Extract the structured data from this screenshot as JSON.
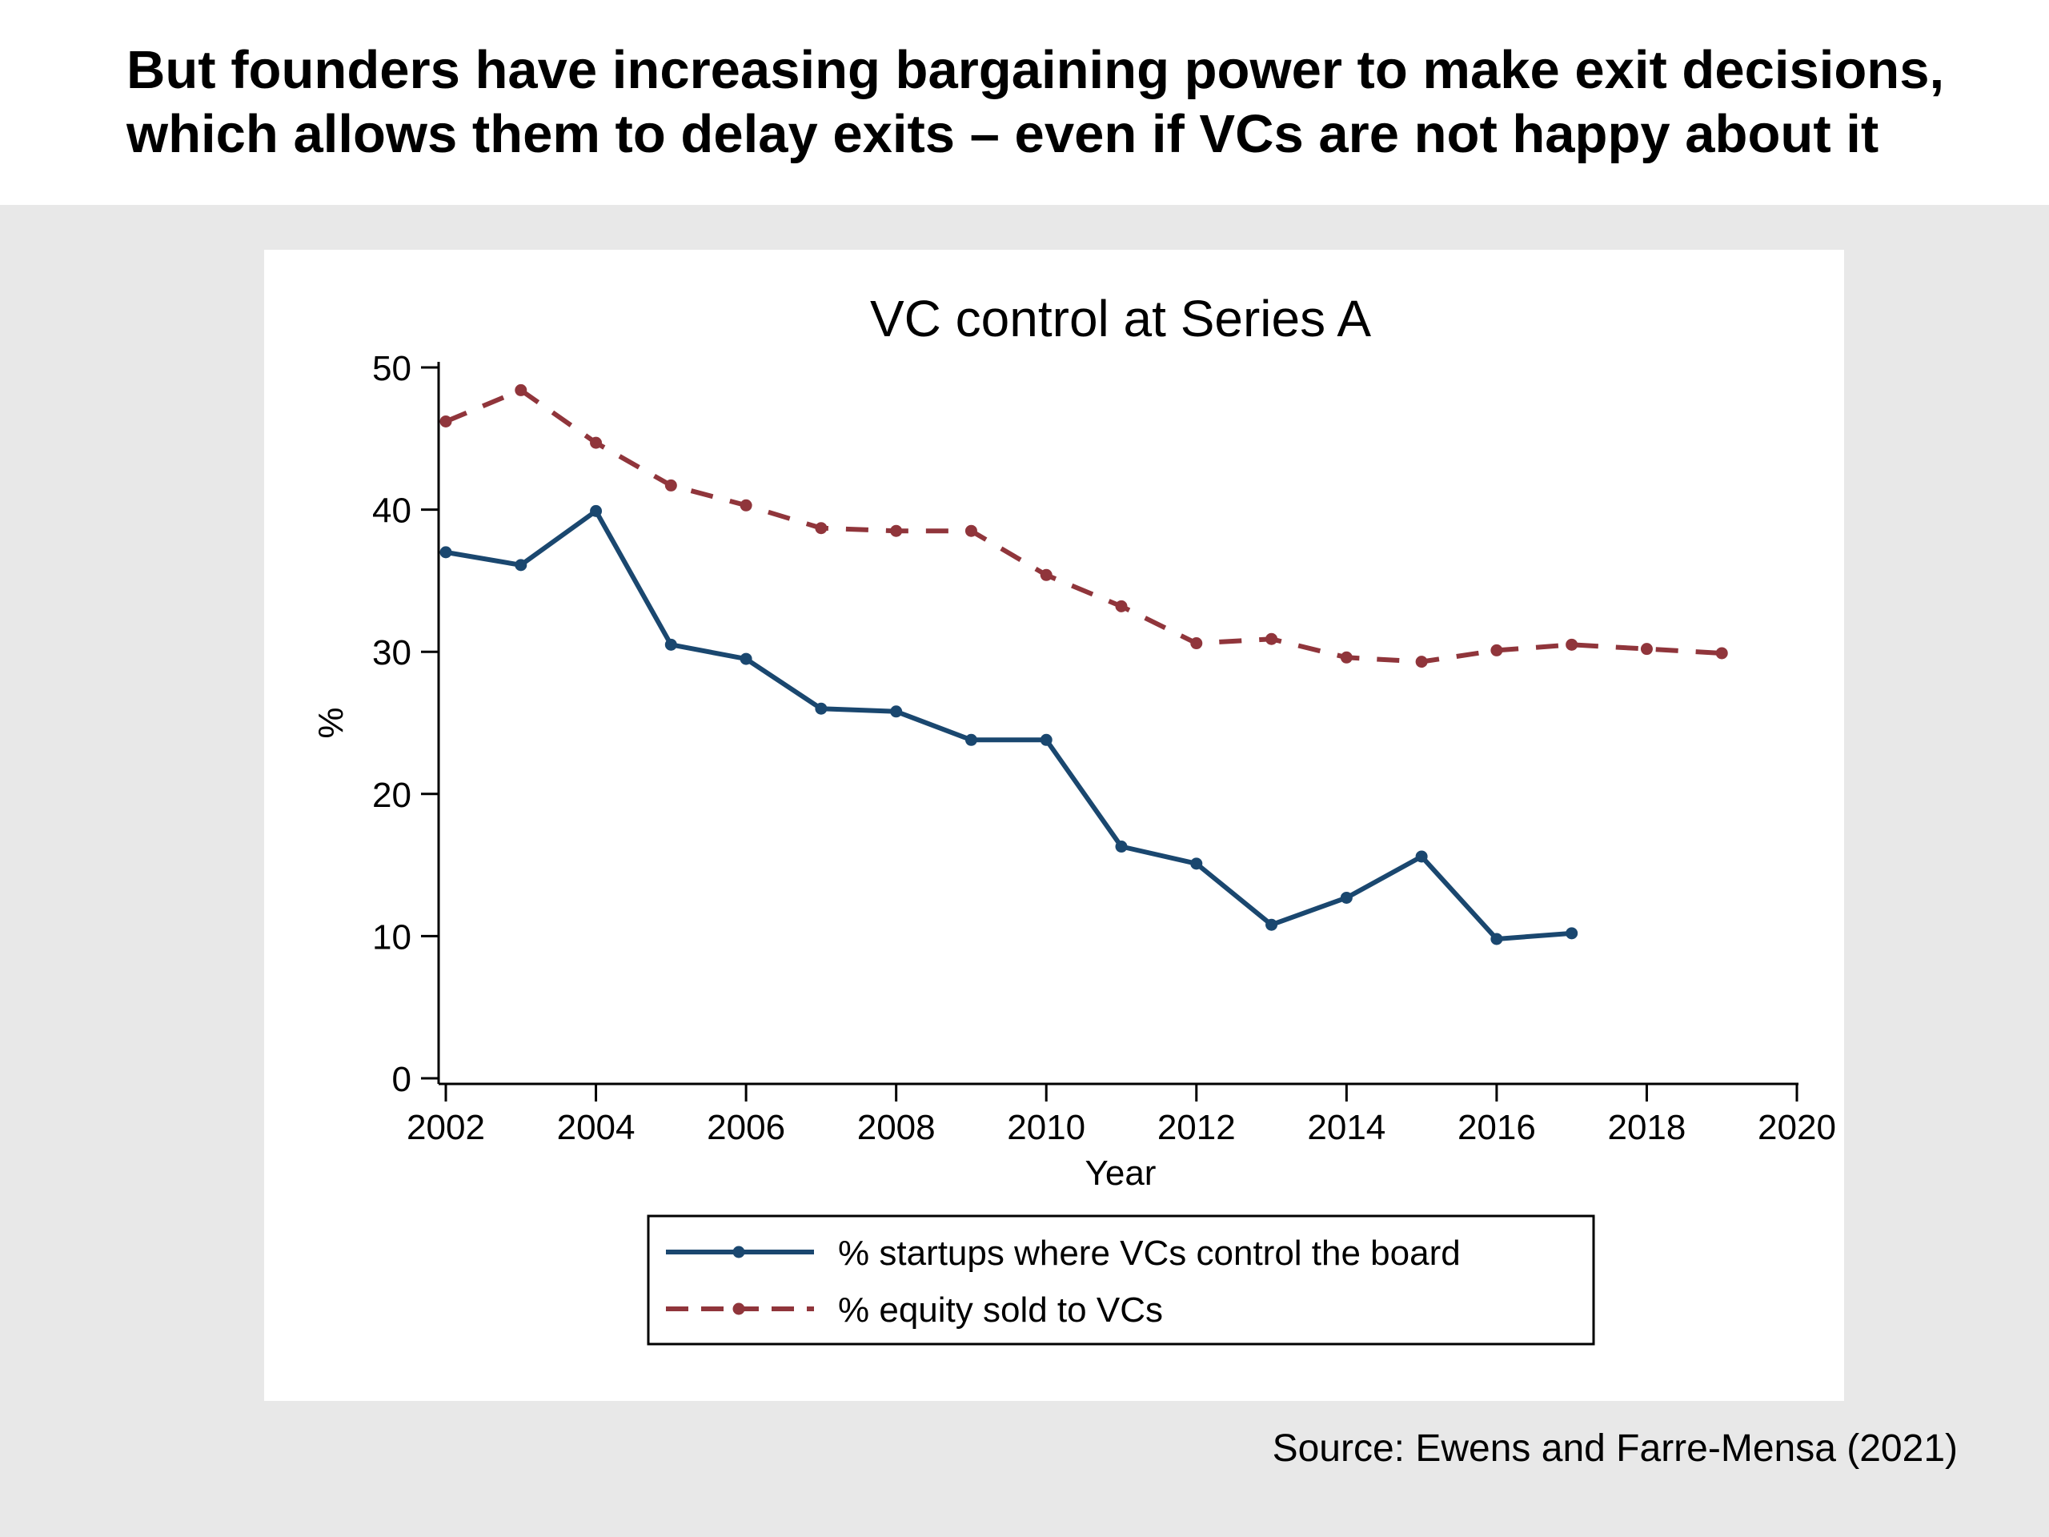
{
  "slide": {
    "headline_lines": [
      "But founders have increasing bargaining power to make exit decisions,",
      "which allows them to delay exits – even if VCs are not happy about it"
    ],
    "source": "Source: Ewens and Farre-Mensa (2021)"
  },
  "chart_data": {
    "type": "line",
    "title": "VC control at Series A",
    "xlabel": "Year",
    "ylabel": "%",
    "xlim": [
      2002,
      2020
    ],
    "ylim": [
      0,
      50
    ],
    "xticks": [
      2002,
      2004,
      2006,
      2008,
      2010,
      2012,
      2014,
      2016,
      2018,
      2020
    ],
    "yticks": [
      0,
      10,
      20,
      30,
      40,
      50
    ],
    "grid": false,
    "legend_position": "bottom",
    "series": [
      {
        "name": "% startups where VCs control the board",
        "color": "#1a476f",
        "style": "solid",
        "marker": "circle",
        "x": [
          2002,
          2003,
          2004,
          2005,
          2006,
          2007,
          2008,
          2009,
          2010,
          2011,
          2012,
          2013,
          2014,
          2015,
          2016,
          2017
        ],
        "values": [
          37.0,
          36.1,
          39.9,
          30.5,
          29.5,
          26.0,
          25.8,
          23.8,
          23.8,
          16.3,
          15.1,
          10.8,
          12.7,
          15.6,
          9.8,
          10.2
        ]
      },
      {
        "name": "% equity sold to VCs",
        "color": "#90353b",
        "style": "dashed",
        "marker": "circle",
        "x": [
          2002,
          2003,
          2004,
          2005,
          2006,
          2007,
          2008,
          2009,
          2010,
          2011,
          2012,
          2013,
          2014,
          2015,
          2016,
          2017,
          2018,
          2019
        ],
        "values": [
          46.2,
          48.4,
          44.7,
          41.7,
          40.3,
          38.7,
          38.5,
          38.5,
          35.4,
          33.2,
          30.6,
          30.9,
          29.6,
          29.3,
          30.1,
          30.5,
          30.2,
          29.9
        ]
      }
    ]
  }
}
